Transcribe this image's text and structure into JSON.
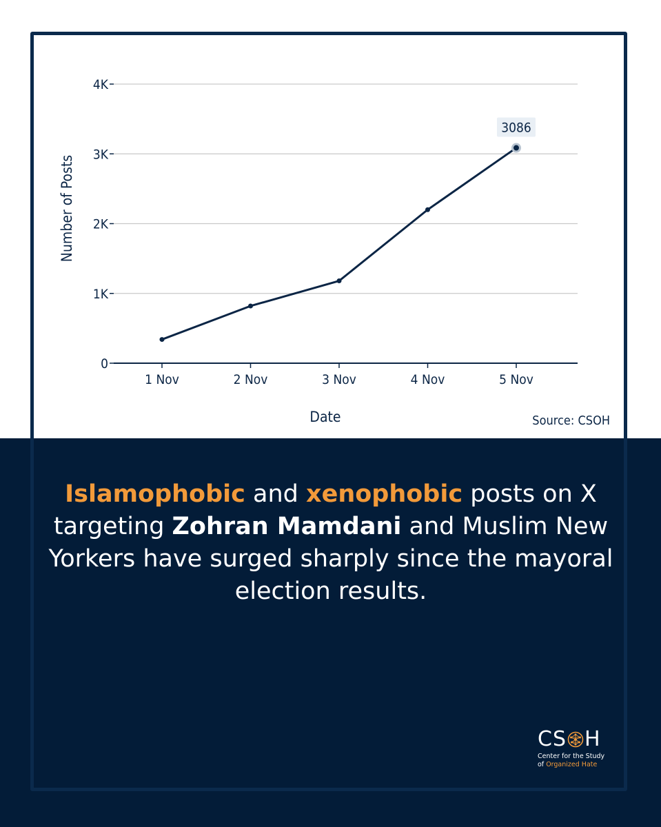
{
  "chart_data": {
    "type": "line",
    "xlabel": "Date",
    "ylabel": "Number of Posts",
    "categories": [
      "1 Nov",
      "2 Nov",
      "3 Nov",
      "4 Nov",
      "5 Nov"
    ],
    "values": [
      340,
      820,
      1180,
      2200,
      3086
    ],
    "ylim": [
      0,
      4000
    ],
    "yticks": [
      {
        "value": 0,
        "label": "0"
      },
      {
        "value": 1000,
        "label": "1K"
      },
      {
        "value": 2000,
        "label": "2K"
      },
      {
        "value": 3000,
        "label": "3K"
      },
      {
        "value": 4000,
        "label": "4K"
      }
    ],
    "annotation": {
      "index": 4,
      "label": "3086"
    },
    "source": "Source: CSOH",
    "grid": true,
    "line_color": "#0b2545"
  },
  "headline": {
    "accent1": "Islamophobic",
    "text1": " and ",
    "accent2": "xenophobic",
    "text2": " posts on X targeting ",
    "bold1": "Zohran Mamdani",
    "text3": " and Muslim New Yorkers have surged sharply since the mayoral election results."
  },
  "logo": {
    "wordmark_left": "CS",
    "wordmark_right": "H",
    "line1": "Center for the Study",
    "line2_prefix": "of ",
    "line2_accent": "Organized Hate"
  },
  "colors": {
    "navy": "#031c38",
    "frame": "#0b2a4c",
    "accent": "#f29a3a",
    "grid": "#c9c9c9"
  }
}
